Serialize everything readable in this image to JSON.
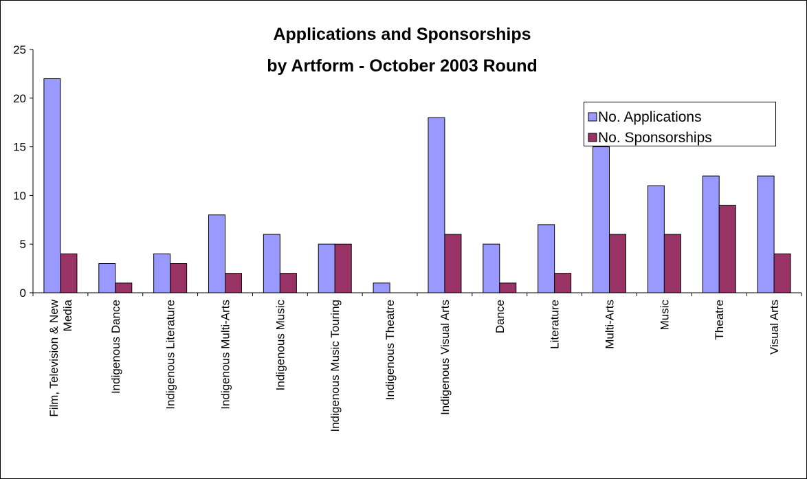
{
  "chart_data": {
    "type": "bar",
    "title": [
      "Applications and Sponsorships",
      "by Artform - October 2003 Round"
    ],
    "categories": [
      "Film, Television & New Media",
      "Indigenous Dance",
      "Indigenous Literature",
      "Indigenous Multi-Arts",
      "Indigenous Music",
      "Indigenous Music Touring",
      "Indigenous Theatre",
      "Indigenous Visual Arts",
      "Dance",
      "Literature",
      "Multi-Arts",
      "Music",
      "Theatre",
      "Visual Arts"
    ],
    "series": [
      {
        "name": "No. Applications",
        "color": "#9999ff",
        "values": [
          22,
          3,
          4,
          8,
          6,
          5,
          1,
          18,
          5,
          7,
          15,
          11,
          12,
          12
        ]
      },
      {
        "name": "No. Sponsorships",
        "color": "#993366",
        "values": [
          4,
          1,
          3,
          2,
          2,
          5,
          0,
          6,
          1,
          2,
          6,
          6,
          9,
          4
        ]
      }
    ],
    "ylim": [
      0,
      25
    ],
    "yticks": [
      0,
      5,
      10,
      15,
      20,
      25
    ],
    "grid": false,
    "legend": "top-right"
  }
}
